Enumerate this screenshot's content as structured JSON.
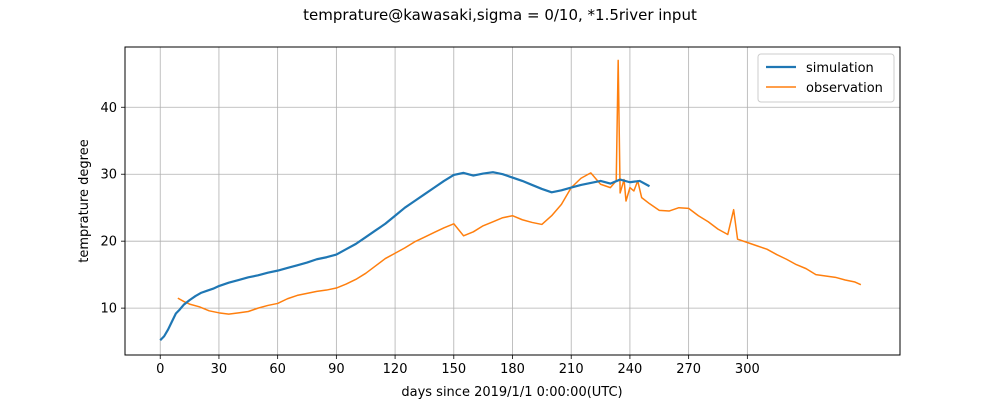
{
  "chart_data": {
    "type": "line",
    "title": "temprature@kawasaki,sigma = 0/10, *1.5river input",
    "xlabel": "days since 2019/1/1 0:00:00(UTC)",
    "ylabel": "temprature degree",
    "xlim": [
      -18,
      378
    ],
    "ylim": [
      3,
      49
    ],
    "xticks": [
      0,
      30,
      60,
      90,
      120,
      150,
      180,
      210,
      240,
      270,
      300
    ],
    "yticks": [
      10,
      20,
      30,
      40
    ],
    "grid": true,
    "legend_position": "top-right",
    "series": [
      {
        "name": "simulation",
        "color": "#1f77b4",
        "x": [
          0,
          2,
          4,
          6,
          8,
          10,
          12,
          15,
          18,
          21,
          24,
          27,
          30,
          35,
          40,
          45,
          50,
          55,
          60,
          65,
          70,
          75,
          80,
          85,
          90,
          95,
          100,
          105,
          110,
          115,
          120,
          125,
          130,
          135,
          140,
          145,
          150,
          155,
          160,
          165,
          170,
          175,
          180,
          185,
          190,
          195,
          200,
          205,
          210,
          215,
          220,
          225,
          230,
          235,
          240,
          245,
          250
        ],
        "y": [
          5.2,
          5.8,
          6.8,
          8.0,
          9.2,
          9.8,
          10.5,
          11.2,
          11.8,
          12.3,
          12.6,
          12.9,
          13.3,
          13.8,
          14.2,
          14.6,
          14.9,
          15.3,
          15.6,
          16.0,
          16.4,
          16.8,
          17.3,
          17.6,
          18.0,
          18.8,
          19.6,
          20.6,
          21.6,
          22.6,
          23.8,
          25.0,
          26.0,
          27.0,
          28.0,
          29.0,
          29.9,
          30.2,
          29.8,
          30.1,
          30.3,
          30.0,
          29.5,
          29.0,
          28.4,
          27.8,
          27.3,
          27.6,
          28.0,
          28.4,
          28.7,
          29.0,
          28.6,
          29.2,
          28.8,
          29.0,
          28.2
        ]
      },
      {
        "name": "observation",
        "color": "#ff7f0e",
        "x": [
          9,
          12,
          15,
          20,
          25,
          30,
          35,
          40,
          45,
          50,
          55,
          60,
          65,
          70,
          75,
          80,
          85,
          90,
          95,
          100,
          105,
          110,
          115,
          120,
          125,
          130,
          135,
          140,
          145,
          150,
          155,
          160,
          165,
          170,
          175,
          180,
          185,
          190,
          195,
          200,
          205,
          210,
          215,
          220,
          225,
          230,
          233,
          234,
          235,
          237,
          238,
          240,
          242,
          244,
          246,
          250,
          255,
          260,
          265,
          270,
          275,
          280,
          285,
          290,
          293,
          295,
          300,
          305,
          310,
          315,
          320,
          325,
          330,
          335,
          340,
          345,
          350,
          355,
          358
        ],
        "y": [
          11.5,
          11.0,
          10.6,
          10.2,
          9.6,
          9.3,
          9.1,
          9.3,
          9.5,
          10.0,
          10.4,
          10.7,
          11.4,
          11.9,
          12.2,
          12.5,
          12.7,
          13.0,
          13.6,
          14.3,
          15.2,
          16.3,
          17.4,
          18.2,
          19.0,
          19.9,
          20.6,
          21.3,
          22.0,
          22.6,
          20.8,
          21.4,
          22.3,
          22.9,
          23.5,
          23.8,
          23.2,
          22.8,
          22.5,
          23.8,
          25.5,
          28.0,
          29.4,
          30.2,
          28.5,
          28.0,
          29.0,
          47.0,
          27.2,
          29.2,
          26.0,
          28.0,
          27.5,
          29.0,
          26.5,
          25.6,
          24.6,
          24.5,
          25.0,
          24.9,
          23.8,
          22.9,
          21.8,
          21.0,
          24.7,
          20.3,
          19.8,
          19.3,
          18.8,
          18.0,
          17.3,
          16.5,
          15.9,
          15.0,
          14.8,
          14.6,
          14.2,
          13.9,
          13.5
        ]
      }
    ]
  }
}
